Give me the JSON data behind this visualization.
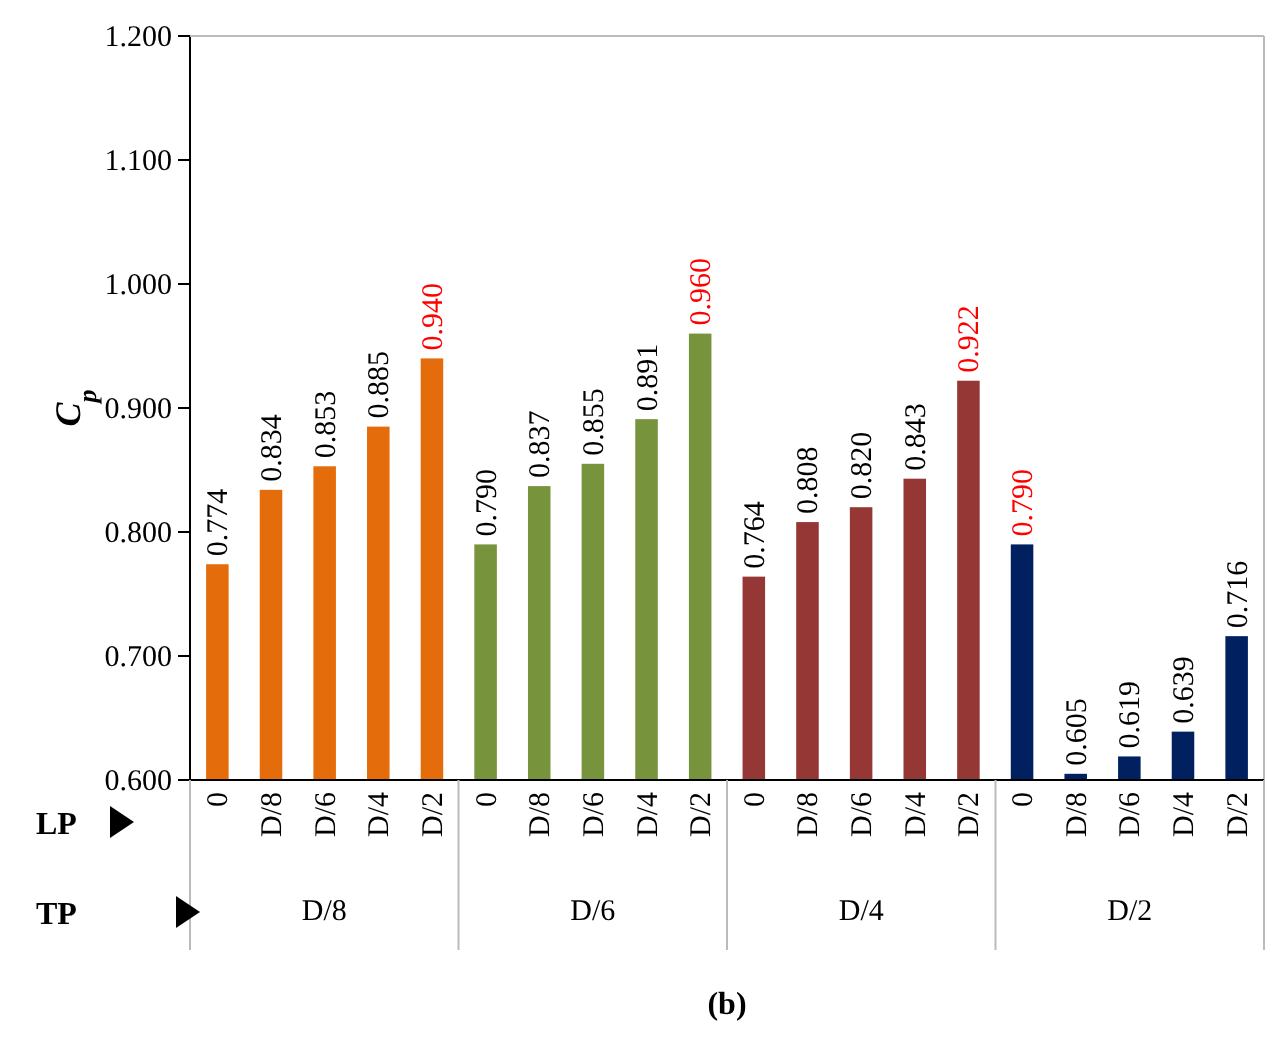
{
  "chart_data": {
    "type": "bar",
    "ylabel": "C$_{p}$",
    "categories": [
      "0",
      "D/8",
      "D/6",
      "D/4",
      "D/2",
      "0",
      "D/8",
      "D/6",
      "D/4",
      "D/2",
      "0",
      "D/8",
      "D/6",
      "D/4",
      "D/2",
      "0",
      "D/8",
      "D/6",
      "D/4",
      "D/2"
    ],
    "values": [
      0.774,
      0.834,
      0.853,
      0.885,
      0.94,
      0.79,
      0.837,
      0.855,
      0.891,
      0.96,
      0.764,
      0.808,
      0.82,
      0.843,
      0.922,
      0.79,
      0.605,
      0.619,
      0.639,
      0.716
    ],
    "colors": [
      "#e46c0a",
      "#e46c0a",
      "#e46c0a",
      "#e46c0a",
      "#e46c0a",
      "#77933c",
      "#77933c",
      "#77933c",
      "#77933c",
      "#77933c",
      "#953735",
      "#953735",
      "#953735",
      "#953735",
      "#953735",
      "#002060",
      "#002060",
      "#002060",
      "#002060",
      "#002060"
    ],
    "ylim": [
      0.6,
      1.2
    ],
    "yticks": [
      {
        "value": 0.6,
        "label": "0.600"
      },
      {
        "value": 0.7,
        "label": "0.700"
      },
      {
        "value": 0.8,
        "label": "0.800"
      },
      {
        "value": 0.9,
        "label": "0.900"
      },
      {
        "value": 1.0,
        "label": "1.000"
      },
      {
        "value": 1.1,
        "label": "1.100"
      },
      {
        "value": 1.2,
        "label": "1.200"
      }
    ],
    "value_labels": [
      "0.774",
      "0.834",
      "0.853",
      "0.885",
      "0.940",
      "0.790",
      "0.837",
      "0.855",
      "0.891",
      "0.960",
      "0.764",
      "0.808",
      "0.820",
      "0.843",
      "0.922",
      "0.790",
      "0.605",
      "0.619",
      "0.639",
      "0.716"
    ],
    "grid": false,
    "annotations": [
      "LP",
      "TP",
      "D/8",
      "D/6",
      "D/4",
      "D/2",
      "(b)"
    ]
  }
}
